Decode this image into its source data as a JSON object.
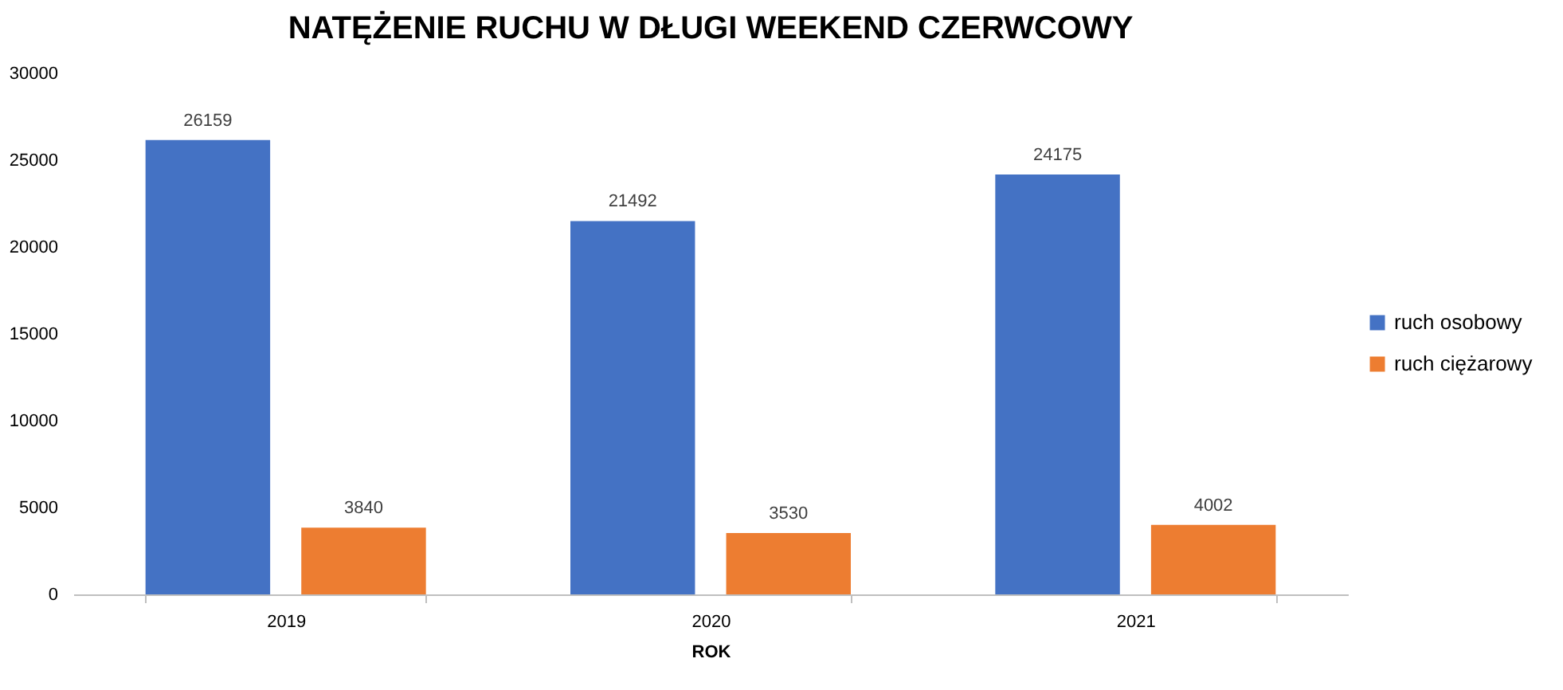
{
  "chart_data": {
    "type": "bar",
    "title": "NATĘŻENIE RUCHU W DŁUGI WEEKEND CZERWCOWY",
    "xlabel": "ROK",
    "categories": [
      "2019",
      "2020",
      "2021"
    ],
    "series": [
      {
        "name": "ruch osobowy",
        "color": "#4472c4",
        "values": [
          26159,
          21492,
          24175
        ]
      },
      {
        "name": "ruch ciężarowy",
        "color": "#ed7d31",
        "values": [
          3840,
          3530,
          4002
        ]
      }
    ],
    "ylim": [
      0,
      30000
    ],
    "yticks": [
      0,
      5000,
      10000,
      15000,
      20000,
      25000,
      30000
    ],
    "grid": false,
    "legend": "right",
    "data_labels": true
  }
}
